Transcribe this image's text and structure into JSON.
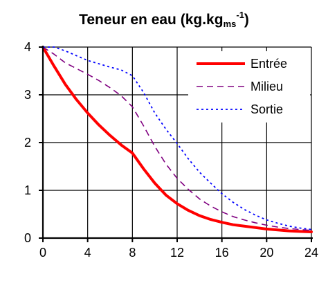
{
  "chart_data": {
    "type": "line",
    "title": {
      "main": "Teneur en eau (kg.kg",
      "subscript": "ms",
      "superscript": "-1",
      "close": ")"
    },
    "xlabel": "",
    "ylabel": "",
    "xlim": [
      0,
      24
    ],
    "ylim": [
      0,
      4
    ],
    "x_ticks": [
      "0",
      "4",
      "8",
      "12",
      "16",
      "20",
      "24"
    ],
    "y_ticks": [
      "0",
      "1",
      "2",
      "3",
      "4"
    ],
    "grid": true,
    "legend_position": "top-right",
    "series": [
      {
        "name": "Entrée",
        "color": "#ff0000",
        "style": "solid",
        "points": [
          [
            0,
            4.0
          ],
          [
            1,
            3.6
          ],
          [
            2,
            3.22
          ],
          [
            3,
            2.9
          ],
          [
            4,
            2.62
          ],
          [
            5,
            2.37
          ],
          [
            6,
            2.15
          ],
          [
            7,
            1.95
          ],
          [
            8,
            1.78
          ],
          [
            9,
            1.45
          ],
          [
            10,
            1.15
          ],
          [
            11,
            0.9
          ],
          [
            12,
            0.72
          ],
          [
            13,
            0.58
          ],
          [
            14,
            0.47
          ],
          [
            15,
            0.39
          ],
          [
            16,
            0.33
          ],
          [
            17,
            0.28
          ],
          [
            18,
            0.25
          ],
          [
            19,
            0.22
          ],
          [
            20,
            0.19
          ],
          [
            21,
            0.17
          ],
          [
            22,
            0.15
          ],
          [
            23,
            0.14
          ],
          [
            24,
            0.13
          ]
        ]
      },
      {
        "name": "Milieu",
        "color": "#800080",
        "style": "dashed",
        "points": [
          [
            0,
            4.0
          ],
          [
            1,
            3.85
          ],
          [
            2,
            3.67
          ],
          [
            3,
            3.55
          ],
          [
            4,
            3.43
          ],
          [
            5,
            3.3
          ],
          [
            6,
            3.15
          ],
          [
            7,
            2.98
          ],
          [
            8,
            2.75
          ],
          [
            9,
            2.35
          ],
          [
            10,
            1.92
          ],
          [
            11,
            1.55
          ],
          [
            12,
            1.25
          ],
          [
            13,
            1.02
          ],
          [
            14,
            0.82
          ],
          [
            15,
            0.67
          ],
          [
            16,
            0.55
          ],
          [
            17,
            0.45
          ],
          [
            18,
            0.38
          ],
          [
            19,
            0.32
          ],
          [
            20,
            0.27
          ],
          [
            21,
            0.23
          ],
          [
            22,
            0.2
          ],
          [
            23,
            0.18
          ],
          [
            24,
            0.16
          ]
        ]
      },
      {
        "name": "Sortie",
        "color": "#0000ff",
        "style": "dotted",
        "points": [
          [
            0,
            4.0
          ],
          [
            1,
            4.0
          ],
          [
            2,
            3.92
          ],
          [
            3,
            3.82
          ],
          [
            4,
            3.72
          ],
          [
            5,
            3.65
          ],
          [
            6,
            3.58
          ],
          [
            7,
            3.52
          ],
          [
            8,
            3.4
          ],
          [
            9,
            3.05
          ],
          [
            10,
            2.62
          ],
          [
            11,
            2.28
          ],
          [
            12,
            1.98
          ],
          [
            13,
            1.66
          ],
          [
            14,
            1.38
          ],
          [
            15,
            1.15
          ],
          [
            16,
            0.93
          ],
          [
            17,
            0.75
          ],
          [
            18,
            0.6
          ],
          [
            19,
            0.48
          ],
          [
            20,
            0.38
          ],
          [
            21,
            0.31
          ],
          [
            22,
            0.25
          ],
          [
            23,
            0.21
          ],
          [
            24,
            0.18
          ]
        ]
      }
    ]
  }
}
